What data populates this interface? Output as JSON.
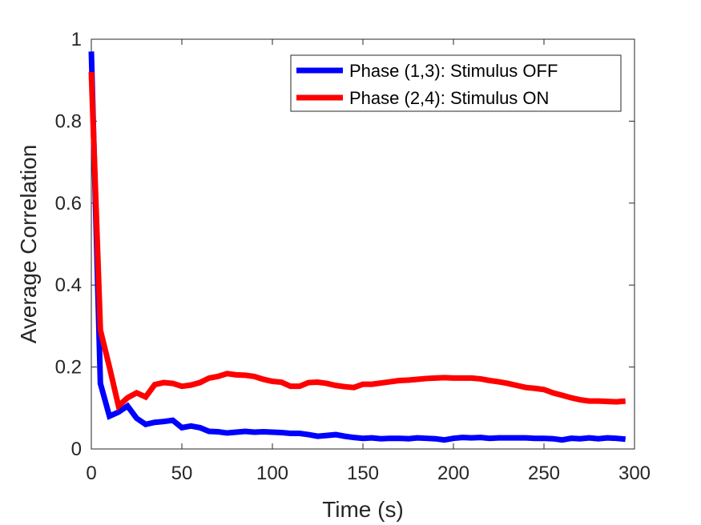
{
  "chart_data": {
    "type": "line",
    "title": "",
    "xlabel": "Time (s)",
    "ylabel": "Average Correlation",
    "xlim": [
      0,
      300
    ],
    "ylim": [
      0,
      1
    ],
    "xticks": [
      0,
      50,
      100,
      150,
      200,
      250,
      300
    ],
    "yticks": [
      0,
      0.2,
      0.4,
      0.6,
      0.8,
      1
    ],
    "xtick_labels": [
      "0",
      "50",
      "100",
      "150",
      "200",
      "250",
      "300"
    ],
    "ytick_labels": [
      "0",
      "0.2",
      "0.4",
      "0.6",
      "0.8",
      "1"
    ],
    "grid": false,
    "legend_position": "top-right",
    "x": [
      0,
      5,
      10,
      15,
      20,
      25,
      30,
      35,
      40,
      45,
      50,
      55,
      60,
      65,
      70,
      75,
      80,
      85,
      90,
      95,
      100,
      105,
      110,
      115,
      120,
      125,
      130,
      135,
      140,
      145,
      150,
      155,
      160,
      165,
      170,
      175,
      180,
      185,
      190,
      195,
      200,
      205,
      210,
      215,
      220,
      225,
      230,
      235,
      240,
      245,
      250,
      255,
      260,
      265,
      270,
      275,
      280,
      285,
      290,
      295
    ],
    "series": [
      {
        "name": "Phase (1,3): Stimulus OFF",
        "color": "#0000ff",
        "values": [
          0.97,
          0.16,
          0.08,
          0.09,
          0.105,
          0.075,
          0.06,
          0.065,
          0.067,
          0.07,
          0.052,
          0.056,
          0.052,
          0.043,
          0.042,
          0.039,
          0.041,
          0.043,
          0.041,
          0.042,
          0.041,
          0.04,
          0.038,
          0.038,
          0.035,
          0.031,
          0.033,
          0.035,
          0.031,
          0.028,
          0.026,
          0.027,
          0.025,
          0.026,
          0.026,
          0.025,
          0.027,
          0.026,
          0.025,
          0.022,
          0.026,
          0.028,
          0.027,
          0.028,
          0.026,
          0.027,
          0.027,
          0.027,
          0.027,
          0.026,
          0.026,
          0.025,
          0.022,
          0.026,
          0.025,
          0.027,
          0.025,
          0.027,
          0.026,
          0.024
        ]
      },
      {
        "name": "Phase (2,4): Stimulus ON",
        "color": "#ff0000",
        "values": [
          0.92,
          0.29,
          0.2,
          0.105,
          0.125,
          0.137,
          0.127,
          0.157,
          0.162,
          0.16,
          0.153,
          0.156,
          0.162,
          0.173,
          0.177,
          0.184,
          0.181,
          0.18,
          0.177,
          0.17,
          0.165,
          0.163,
          0.153,
          0.153,
          0.162,
          0.163,
          0.16,
          0.155,
          0.152,
          0.15,
          0.158,
          0.158,
          0.161,
          0.164,
          0.167,
          0.168,
          0.17,
          0.172,
          0.173,
          0.174,
          0.173,
          0.173,
          0.173,
          0.171,
          0.167,
          0.164,
          0.16,
          0.155,
          0.15,
          0.148,
          0.145,
          0.137,
          0.131,
          0.125,
          0.12,
          0.117,
          0.117,
          0.116,
          0.115,
          0.117
        ]
      }
    ]
  }
}
